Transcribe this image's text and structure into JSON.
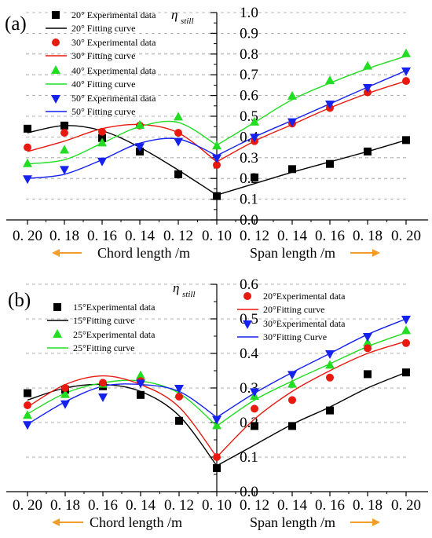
{
  "chart_data": [
    {
      "panel_label": "(a)",
      "type": "scatter",
      "ylabel": "η",
      "ylabel_sub": "still",
      "xlabel_left": "Chord length /m",
      "xlabel_right": "Span length /m",
      "x_tick_labels": [
        "0. 20",
        "0. 18",
        "0. 16",
        "0. 14",
        "0. 12",
        "0. 10",
        "0. 12",
        "0. 14",
        "0. 16",
        "0. 18",
        "0. 20"
      ],
      "ylim": [
        0.0,
        1.0
      ],
      "y_ticks": [
        "0.0",
        "0.1",
        "0.2",
        "0.3",
        "0.4",
        "0.5",
        "0.6",
        "0.7",
        "0.8",
        "0.9",
        "1.0"
      ],
      "grid": "dashed horizontal",
      "legend_position": "top-left",
      "series": [
        {
          "label": "20° Experimental data",
          "fit_label": "20° Fitting curve",
          "color": "#000000",
          "marker": "square",
          "values": [
            0.44,
            0.455,
            0.395,
            0.33,
            0.22,
            0.115,
            0.205,
            0.245,
            0.27,
            0.33,
            0.385
          ],
          "fit_left": [
            0.42,
            0.455,
            0.43,
            0.35,
            0.24,
            0.12
          ],
          "fit_right": [
            0.12,
            0.175,
            0.23,
            0.28,
            0.33,
            0.385
          ]
        },
        {
          "label": "30° Experimental data",
          "fit_label": "30° Fitting curve",
          "color": "#e8190f",
          "marker": "circle",
          "values": [
            0.35,
            0.42,
            0.425,
            0.455,
            0.42,
            0.265,
            0.38,
            0.465,
            0.54,
            0.615,
            0.67
          ],
          "fit_left": [
            0.33,
            0.38,
            0.44,
            0.46,
            0.42,
            0.28
          ],
          "fit_right": [
            0.28,
            0.38,
            0.46,
            0.54,
            0.61,
            0.67
          ]
        },
        {
          "label": "40° Experimental data",
          "fit_label": "40° Fitting curve",
          "color": "#22dd22",
          "marker": "triangle-up",
          "values": [
            0.27,
            0.335,
            0.37,
            0.455,
            0.495,
            0.355,
            0.47,
            0.595,
            0.67,
            0.74,
            0.8
          ],
          "fit_left": [
            0.27,
            0.29,
            0.37,
            0.45,
            0.47,
            0.36
          ],
          "fit_right": [
            0.36,
            0.47,
            0.58,
            0.66,
            0.73,
            0.79
          ]
        },
        {
          "label": "50° Experimental data",
          "fit_label": "50° Fitting curve",
          "color": "#1522ee",
          "marker": "triangle-down",
          "values": [
            0.2,
            0.245,
            0.285,
            0.355,
            0.38,
            0.3,
            0.4,
            0.475,
            0.56,
            0.64,
            0.72
          ],
          "fit_left": [
            0.2,
            0.22,
            0.29,
            0.37,
            0.39,
            0.31
          ],
          "fit_right": [
            0.31,
            0.4,
            0.48,
            0.56,
            0.64,
            0.72
          ]
        }
      ]
    },
    {
      "panel_label": "(b)",
      "type": "scatter",
      "ylabel": "η",
      "ylabel_sub": "still",
      "xlabel_left": "Chord length /m",
      "xlabel_right": "Span length /m",
      "x_tick_labels": [
        "0. 20",
        "0. 18",
        "0. 16",
        "0. 14",
        "0. 12",
        "0. 10",
        "0. 12",
        "0. 14",
        "0. 16",
        "0. 18",
        "0. 20"
      ],
      "ylim": [
        0.0,
        0.6
      ],
      "y_ticks": [
        "0.0",
        "0.1",
        "0.2",
        "0.3",
        "0.4",
        "0.5",
        "0.6"
      ],
      "grid": "dashed horizontal",
      "legend_position": "top",
      "series": [
        {
          "label": "15°Experimental data",
          "fit_label": "15°Fitting curve",
          "color": "#000000",
          "marker": "square",
          "values": [
            0.285,
            0.295,
            0.305,
            0.28,
            0.205,
            0.068,
            0.19,
            0.19,
            0.235,
            0.34,
            0.345
          ],
          "fit_left": [
            0.265,
            0.3,
            0.31,
            0.29,
            0.22,
            0.075
          ],
          "fit_right": [
            0.075,
            0.135,
            0.195,
            0.245,
            0.3,
            0.345
          ]
        },
        {
          "label": "25°Experimental data",
          "fit_label": "25°Fitting curve",
          "color": "#22dd22",
          "marker": "triangle-up",
          "values": [
            0.22,
            0.28,
            0.31,
            0.335,
            0.28,
            0.19,
            0.275,
            0.31,
            0.365,
            0.43,
            0.465
          ],
          "fit_left": [
            0.225,
            0.285,
            0.315,
            0.32,
            0.285,
            0.19
          ],
          "fit_right": [
            0.19,
            0.265,
            0.32,
            0.37,
            0.42,
            0.46
          ]
        },
        {
          "label": "20°Experimental data",
          "fit_label": "20°Fitting curve",
          "color": "#e8190f",
          "marker": "circle",
          "values": [
            0.25,
            0.3,
            0.315,
            0.32,
            0.275,
            0.1,
            0.24,
            0.265,
            0.33,
            0.415,
            0.43
          ],
          "fit_left": [
            0.245,
            0.31,
            0.335,
            0.31,
            0.245,
            0.1
          ],
          "fit_right": [
            0.1,
            0.21,
            0.29,
            0.35,
            0.4,
            0.435
          ]
        },
        {
          "label": "30°Experimental data",
          "fit_label": "30°Fitting Curve",
          "color": "#1522ee",
          "marker": "triangle-down",
          "values": [
            0.195,
            0.255,
            0.275,
            0.315,
            0.3,
            0.21,
            0.29,
            0.34,
            0.4,
            0.45,
            0.5
          ],
          "fit_left": [
            0.195,
            0.26,
            0.305,
            0.31,
            0.29,
            0.215
          ],
          "fit_right": [
            0.215,
            0.285,
            0.345,
            0.4,
            0.455,
            0.5
          ]
        }
      ]
    }
  ]
}
